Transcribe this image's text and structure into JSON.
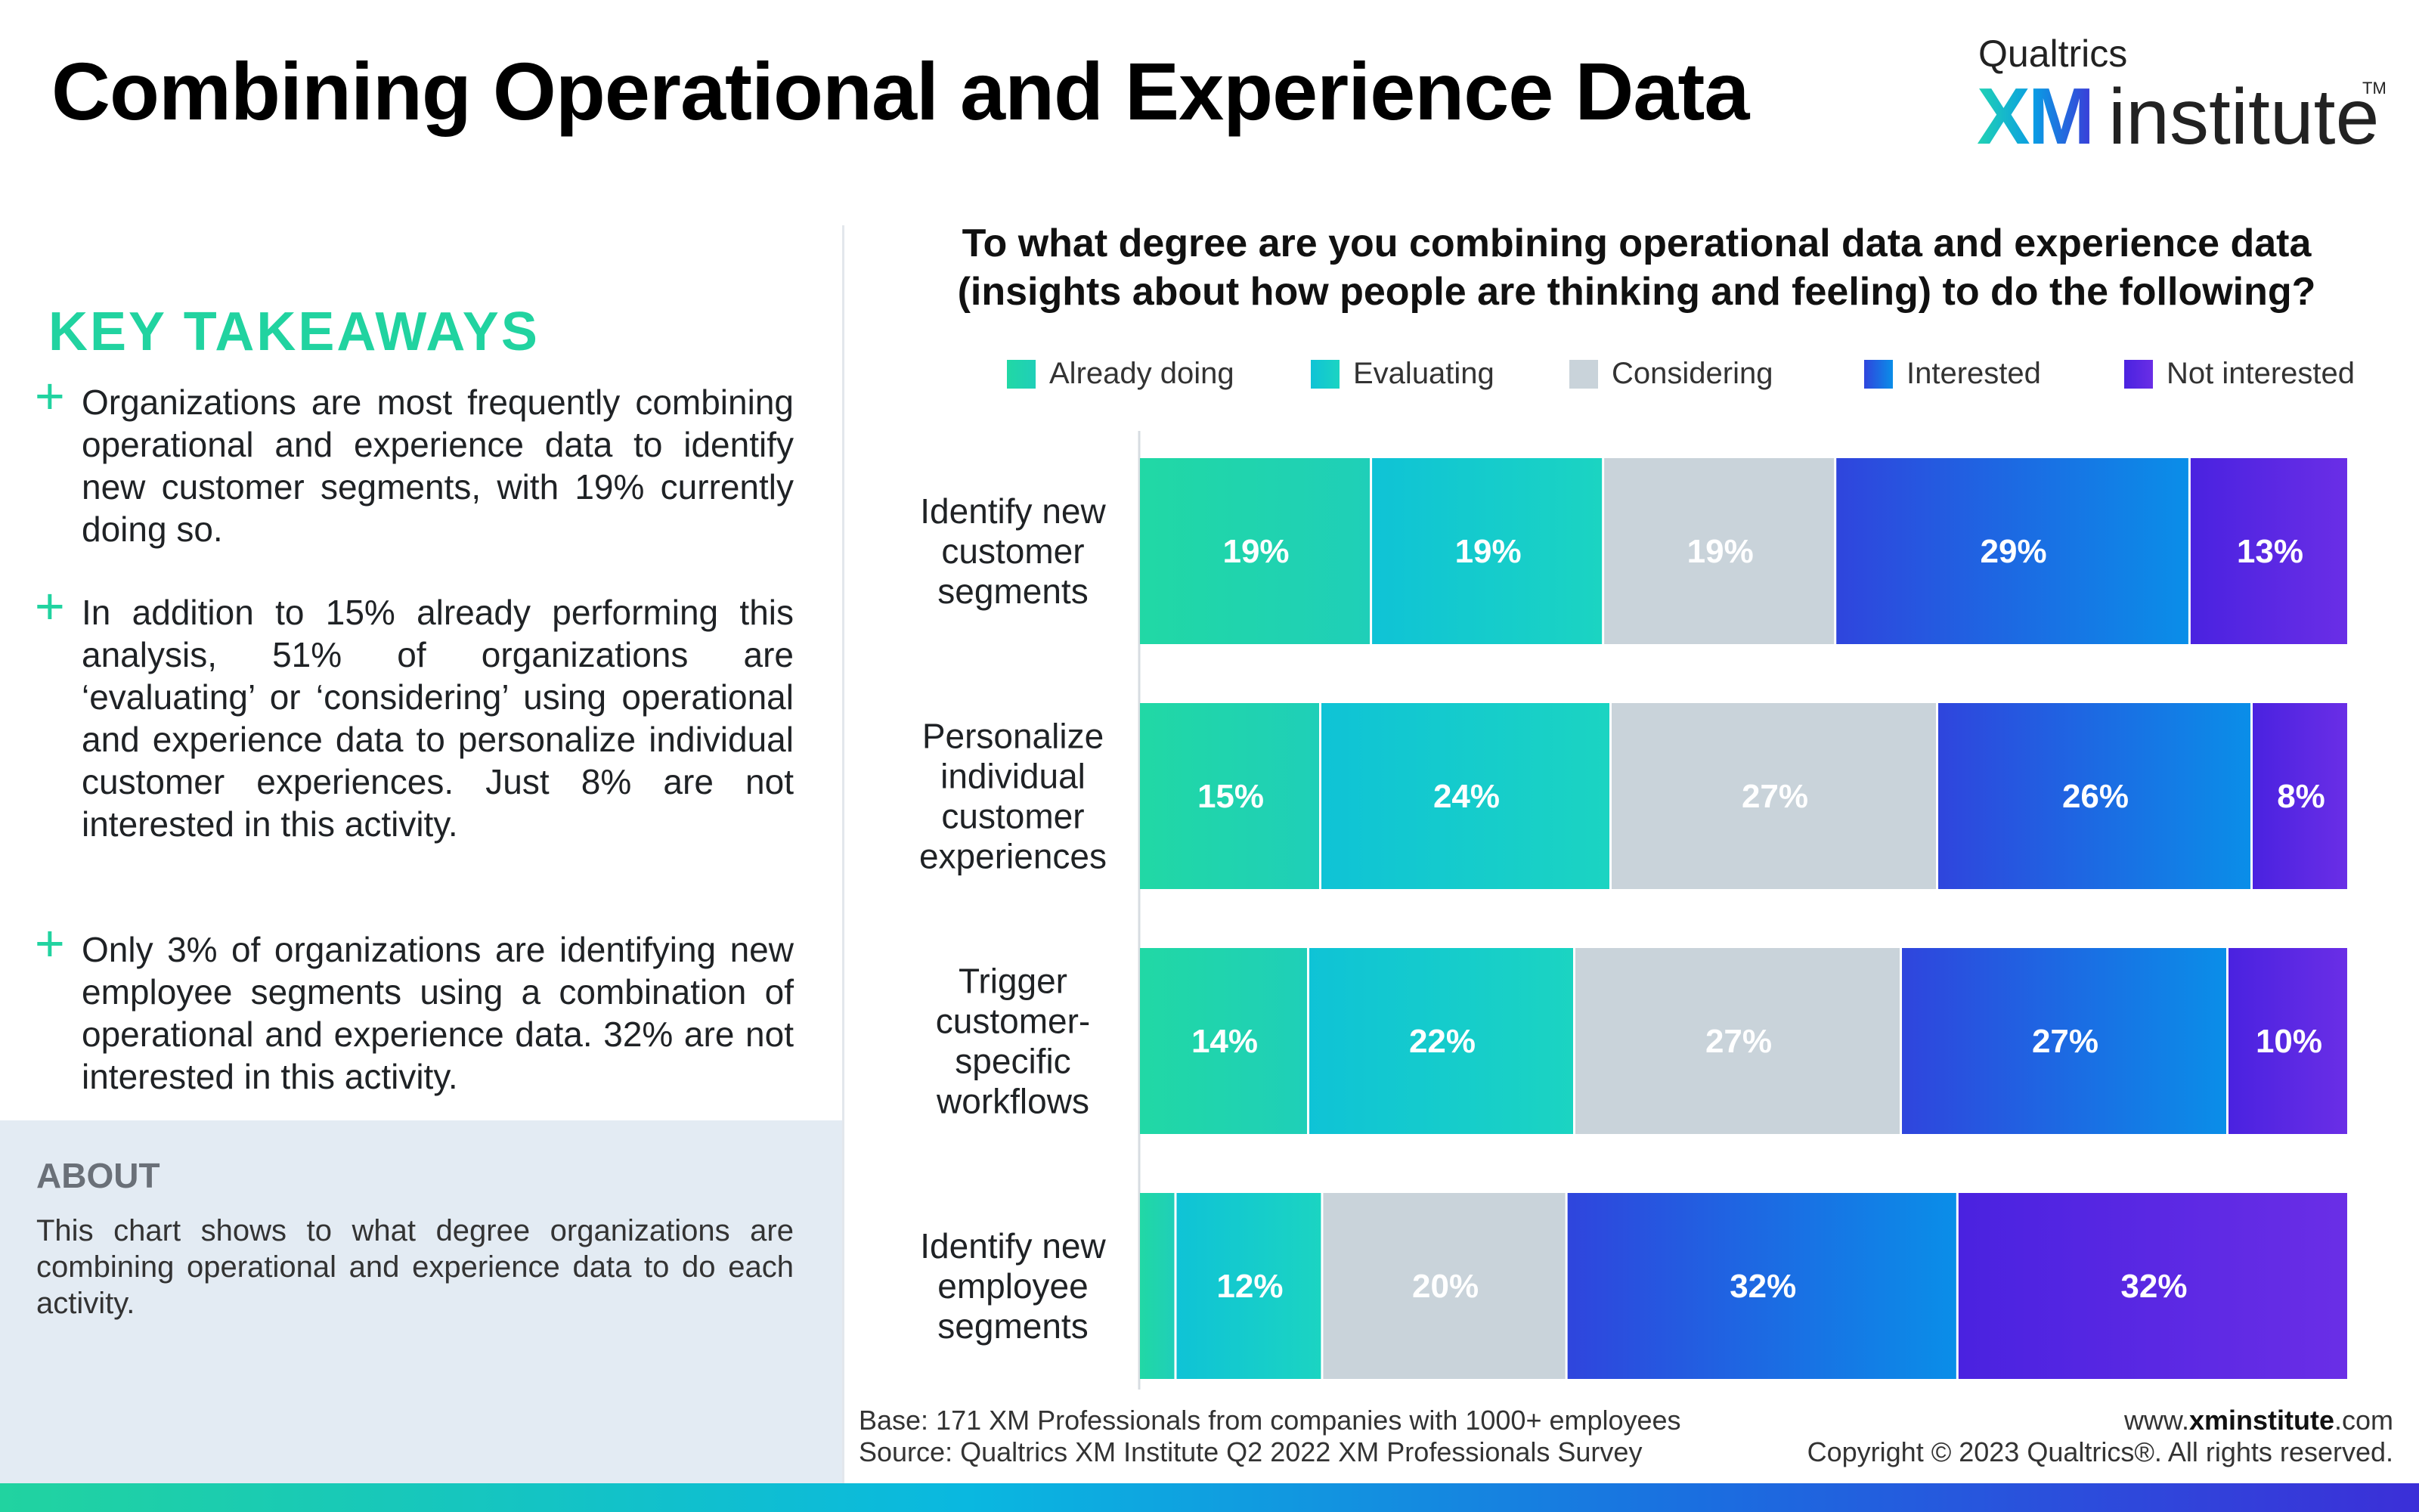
{
  "header": {
    "title": "Combining Operational and Experience Data",
    "logo": {
      "brand": "Qualtrics",
      "mark": "XM",
      "word": "institute",
      "trademark": "TM"
    }
  },
  "takeaways": {
    "heading": "KEY TAKEAWAYS",
    "bullet_icon": "plus-icon",
    "items": [
      "Organizations are most frequently combining operational and experience data to identify new customer segments, with 19% currently doing so.",
      "In addition to 15% already performing this analysis, 51% of organizations are ‘evaluating’ or ‘considering’ using operational and experience data to personalize individual customer experiences. Just 8% are not interested in this activity.",
      "Only 3% of organizations are identifying new employee segments using a combination of operational and experience data. 32% are not interested in this activity."
    ]
  },
  "about": {
    "heading": "ABOUT",
    "text": "This chart shows to what degree organizations are combining operational and experience data to do each activity."
  },
  "chart_data": {
    "type": "bar",
    "orientation": "horizontal",
    "stacked": true,
    "title": "To what degree are you combining operational data and experience data (insights about how people are thinking and feeling) to do the following?",
    "legend_position": "top",
    "units": "%",
    "categories": [
      "Identify new customer segments",
      "Personalize individual customer experiences",
      "Trigger customer-specific workflows",
      "Identify new employee segments"
    ],
    "category_lines": [
      [
        "Identify new",
        "customer",
        "segments"
      ],
      [
        "Personalize",
        "individual",
        "customer",
        "experiences"
      ],
      [
        "Trigger",
        "customer-",
        "specific",
        "workflows"
      ],
      [
        "Identify new",
        "employee",
        "segments"
      ]
    ],
    "series": [
      {
        "name": "Already doing",
        "values": [
          19,
          15,
          14,
          3
        ],
        "labels": [
          "19%",
          "15%",
          "14%",
          ""
        ],
        "color": "#21d8a5",
        "color_end": "#1fcfb8"
      },
      {
        "name": "Evaluating",
        "values": [
          19,
          24,
          22,
          12
        ],
        "labels": [
          "19%",
          "24%",
          "22%",
          "12%"
        ],
        "color": "#0fc3d6",
        "color_end": "#1bd4c2"
      },
      {
        "name": "Considering",
        "values": [
          19,
          27,
          27,
          20
        ],
        "labels": [
          "19%",
          "27%",
          "27%",
          "20%"
        ],
        "color": "#c9d3da",
        "color_end": "#c9d3da"
      },
      {
        "name": "Interested",
        "values": [
          29,
          26,
          27,
          32
        ],
        "labels": [
          "29%",
          "26%",
          "27%",
          "32%"
        ],
        "color": "#2f45dd",
        "color_end": "#0a8ee8"
      },
      {
        "name": "Not interested",
        "values": [
          13,
          8,
          10,
          32
        ],
        "labels": [
          "13%",
          "8%",
          "10%",
          "32%"
        ],
        "color": "#4a22e0",
        "color_end": "#6a2ee6"
      }
    ]
  },
  "footer": {
    "base": "Base: 171 XM Professionals from companies with 1000+ employees",
    "source": "Source: Qualtrics XM Institute Q2 2022 XM Professionals Survey",
    "url_prefix": "www.",
    "url_domain": "xminstitute",
    "url_suffix": ".com",
    "copyright": "Copyright © 2023 Qualtrics®. All rights reserved."
  }
}
